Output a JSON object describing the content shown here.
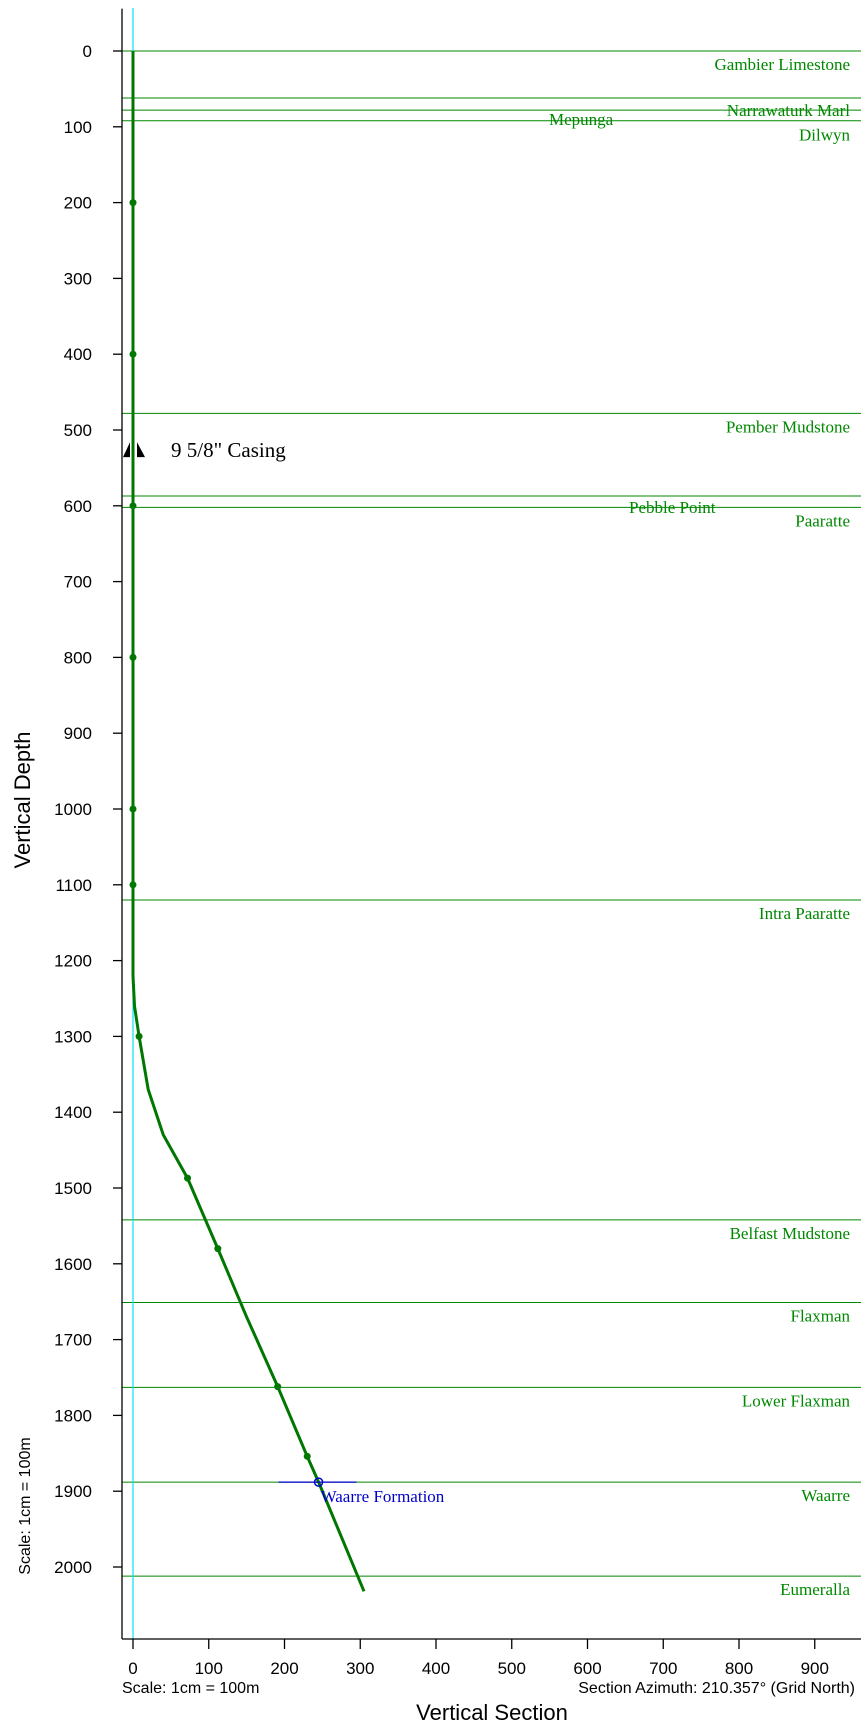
{
  "chart_data": {
    "type": "line",
    "title": "",
    "xlabel": "Vertical Section",
    "ylabel": "Vertical Depth",
    "xlim": [
      -12,
      962
    ],
    "ylim": [
      -52,
      2095
    ],
    "y_inverted": true,
    "x_ticks": [
      0,
      100,
      200,
      300,
      400,
      500,
      600,
      700,
      800,
      900
    ],
    "y_ticks": [
      0,
      100,
      200,
      300,
      400,
      500,
      600,
      700,
      800,
      900,
      1000,
      1100,
      1200,
      1300,
      1400,
      1500,
      1600,
      1700,
      1800,
      1900,
      2000
    ],
    "scale_note_bottom": "Scale: 1cm = 100m",
    "scale_note_left": "Scale: 1cm = 100m",
    "azimuth_note": "Section Azimuth: 210.357° (Grid North)",
    "reference_line_x": 0,
    "colors": {
      "trajectory": "#007700",
      "formation": "#008800",
      "target": "#0000cc",
      "reference": "#00e5ee",
      "axis": "#000000"
    },
    "series": [
      {
        "type": "trajectory",
        "x": [
          0,
          0,
          0,
          0,
          0,
          0,
          0,
          0,
          0,
          0,
          0,
          0,
          0,
          0,
          0,
          2,
          8,
          20,
          40,
          72,
          112,
          150,
          191,
          230,
          245,
          275,
          305
        ],
        "y": [
          0,
          100,
          200,
          300,
          400,
          500,
          600,
          700,
          800,
          900,
          1000,
          1100,
          1150,
          1200,
          1220,
          1260,
          1300,
          1370,
          1430,
          1487,
          1580,
          1670,
          1762,
          1854,
          1888,
          1960,
          2032
        ]
      }
    ],
    "survey_points": {
      "x": [
        0,
        0,
        0,
        0,
        0,
        0,
        8,
        72,
        112,
        191,
        230
      ],
      "y": [
        200,
        400,
        600,
        800,
        1000,
        1100,
        1300,
        1487,
        1580,
        1762,
        1854
      ]
    },
    "casing": {
      "label": "9 5/8\" Casing",
      "depth": 520,
      "x": 0
    },
    "target": {
      "label": "Waarre Formation",
      "x": 245,
      "depth": 1888,
      "line_x_start": 192,
      "line_x_end": 295
    },
    "formations": [
      {
        "name": "Gambier Limestone",
        "depth": 0
      },
      {
        "name": "Narrawaturk Marl",
        "depth": 62
      },
      {
        "name": "Mepunga",
        "depth": 78
      },
      {
        "name": "Dilwyn",
        "depth": 92
      },
      {
        "name": "Pember Mudstone",
        "depth": 478
      },
      {
        "name": "Pebble Point",
        "depth": 587
      },
      {
        "name": "Paaratte",
        "depth": 602
      },
      {
        "name": "Intra Paaratte",
        "depth": 1120
      },
      {
        "name": "Belfast Mudstone",
        "depth": 1542
      },
      {
        "name": "Flaxman",
        "depth": 1651
      },
      {
        "name": "Lower Flaxman",
        "depth": 1763
      },
      {
        "name": "Waarre",
        "depth": 1888
      },
      {
        "name": "Eumeralla",
        "depth": 2012
      }
    ]
  }
}
